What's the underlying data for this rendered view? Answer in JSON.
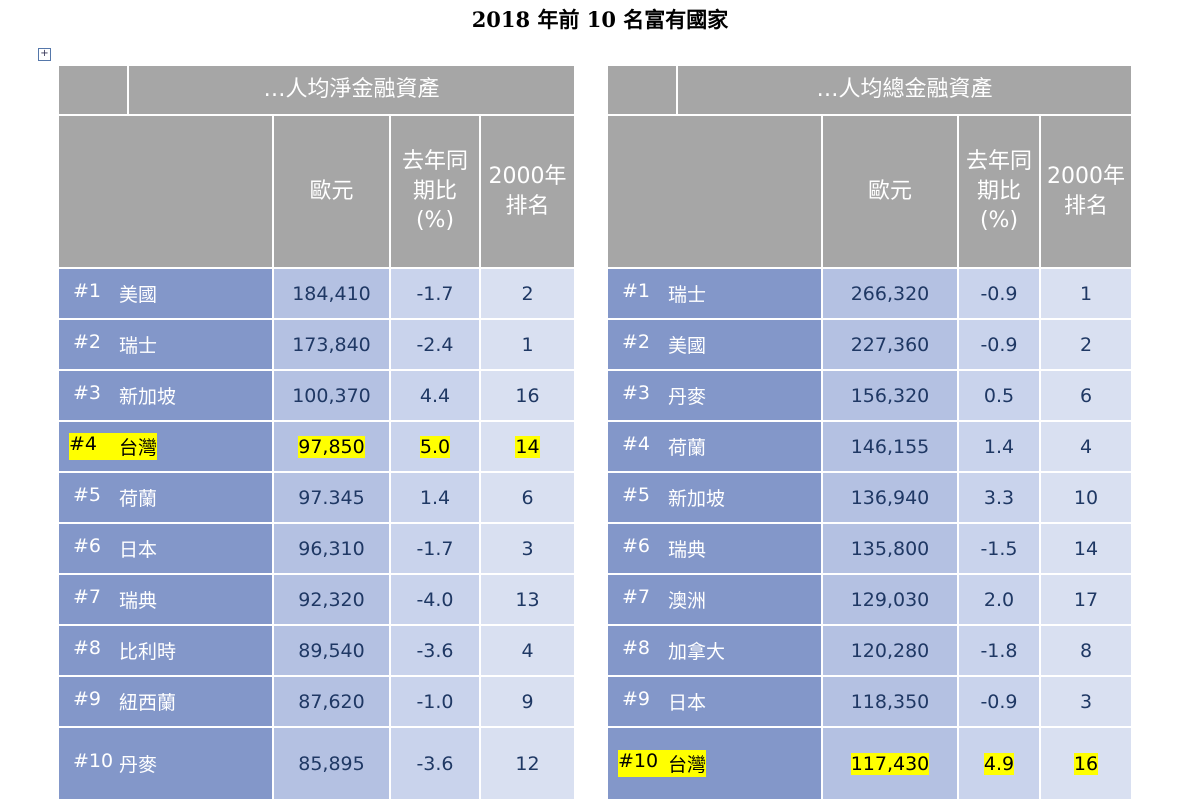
{
  "title": "2018 年前 10 名富有國家",
  "tables": [
    {
      "heading": "…人均淨金融資產",
      "columns": [
        "歐元",
        "去年同期比(%)",
        "2000年排名"
      ],
      "rows": [
        {
          "rank": "#1",
          "country": "美國",
          "euro": "184,410",
          "yoy": "-1.7",
          "rank_2000": "2"
        },
        {
          "rank": "#2",
          "country": "瑞士",
          "euro": "173,840",
          "yoy": "-2.4",
          "rank_2000": "1"
        },
        {
          "rank": "#3",
          "country": "新加坡",
          "euro": "100,370",
          "yoy": "4.4",
          "rank_2000": "16"
        },
        {
          "rank": "#4",
          "country": "台灣",
          "euro": "97,850",
          "yoy": "5.0",
          "rank_2000": "14",
          "highlight": true
        },
        {
          "rank": "#5",
          "country": "荷蘭",
          "euro": "97.345",
          "yoy": "1.4",
          "rank_2000": "6"
        },
        {
          "rank": "#6",
          "country": "日本",
          "euro": "96,310",
          "yoy": "-1.7",
          "rank_2000": "3"
        },
        {
          "rank": "#7",
          "country": "瑞典",
          "euro": "92,320",
          "yoy": "-4.0",
          "rank_2000": "13"
        },
        {
          "rank": "#8",
          "country": "比利時",
          "euro": "89,540",
          "yoy": "-3.6",
          "rank_2000": "4"
        },
        {
          "rank": "#9",
          "country": "紐西蘭",
          "euro": "87,620",
          "yoy": "-1.0",
          "rank_2000": "9"
        },
        {
          "rank": "#10",
          "country": "丹麥",
          "euro": "85,895",
          "yoy": "-3.6",
          "rank_2000": "12"
        }
      ]
    },
    {
      "heading": "…人均總金融資產",
      "columns": [
        "歐元",
        "去年同期比(%)",
        "2000年排名"
      ],
      "rows": [
        {
          "rank": "#1",
          "country": "瑞士",
          "euro": "266,320",
          "yoy": "-0.9",
          "rank_2000": "1"
        },
        {
          "rank": "#2",
          "country": "美國",
          "euro": "227,360",
          "yoy": "-0.9",
          "rank_2000": "2"
        },
        {
          "rank": "#3",
          "country": "丹麥",
          "euro": "156,320",
          "yoy": "0.5",
          "rank_2000": "6"
        },
        {
          "rank": "#4",
          "country": "荷蘭",
          "euro": "146,155",
          "yoy": "1.4",
          "rank_2000": "4"
        },
        {
          "rank": "#5",
          "country": "新加坡",
          "euro": "136,940",
          "yoy": "3.3",
          "rank_2000": "10"
        },
        {
          "rank": "#6",
          "country": "瑞典",
          "euro": "135,800",
          "yoy": "-1.5",
          "rank_2000": "14"
        },
        {
          "rank": "#7",
          "country": "澳洲",
          "euro": "129,030",
          "yoy": "2.0",
          "rank_2000": "17"
        },
        {
          "rank": "#8",
          "country": "加拿大",
          "euro": "120,280",
          "yoy": "-1.8",
          "rank_2000": "8"
        },
        {
          "rank": "#9",
          "country": "日本",
          "euro": "118,350",
          "yoy": "-0.9",
          "rank_2000": "3"
        },
        {
          "rank": "#10",
          "country": "台灣",
          "euro": "117,430",
          "yoy": "4.9",
          "rank_2000": "16",
          "highlight": true
        }
      ]
    }
  ]
}
